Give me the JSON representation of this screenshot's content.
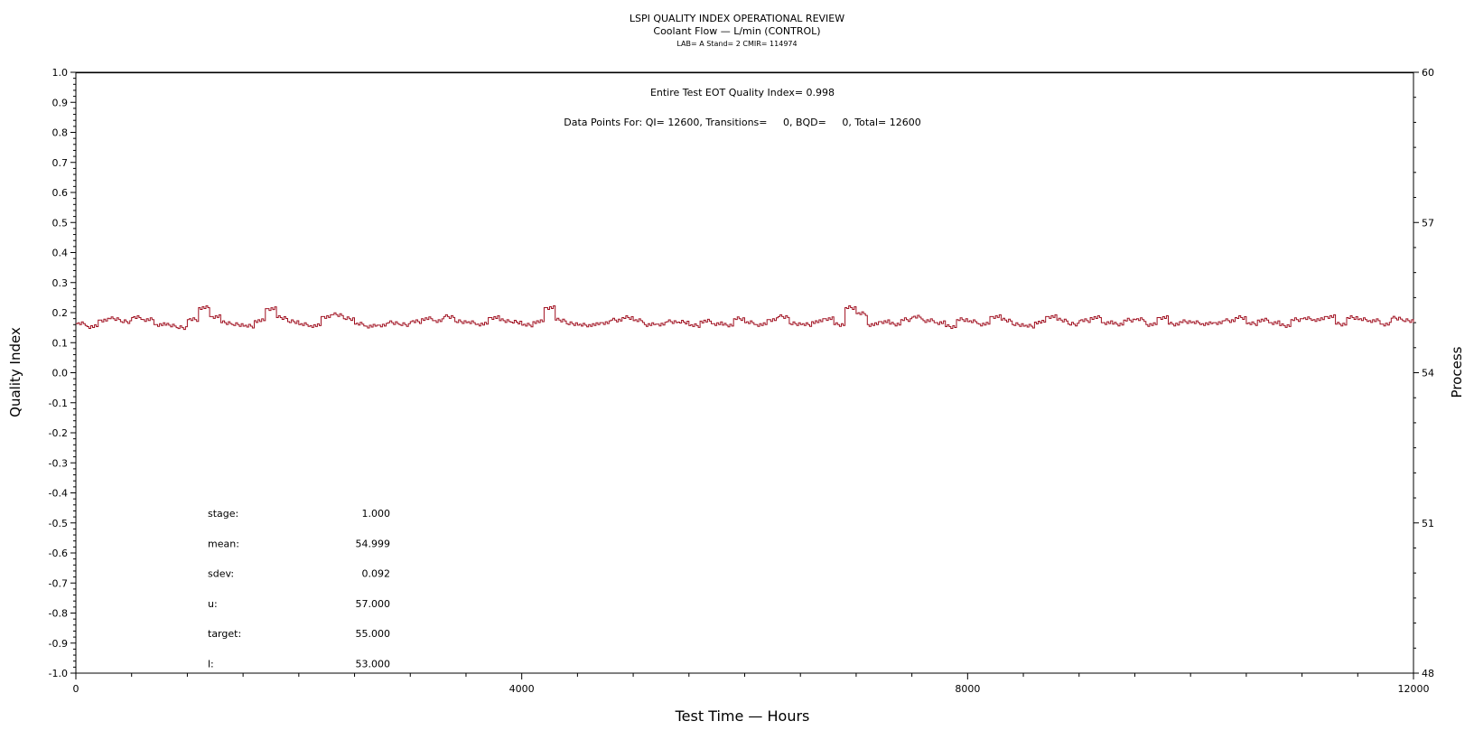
{
  "chart_data": {
    "type": "line",
    "title": "LSPI QUALITY INDEX OPERATIONAL REVIEW",
    "subtitle": "Coolant Flow — L/min (CONTROL)",
    "subtitle2": "LAB= A Stand= 2 CMIR= 114974",
    "xlabel": "Test Time — Hours",
    "ylabel": "Quality Index",
    "y2label": "Process",
    "xlim": [
      0,
      12000
    ],
    "ylim": [
      -1.0,
      1.0
    ],
    "y2lim": [
      48,
      60
    ],
    "x_ticks": [
      "0",
      "4000",
      "8000",
      "12000"
    ],
    "y_ticks": [
      "1.0",
      "0.9",
      "0.8",
      "0.7",
      "0.6",
      "0.5",
      "0.4",
      "0.3",
      "0.2",
      "0.1",
      "0.0",
      "-0.1",
      "-0.2",
      "-0.3",
      "-0.4",
      "-0.5",
      "-0.6",
      "-0.7",
      "-0.8",
      "-0.9",
      "-1.0"
    ],
    "y2_ticks": [
      "60",
      "57",
      "54",
      "51",
      "48"
    ],
    "annotation_eot": "Entire Test EOT Quality Index=   0.998",
    "annotation_points": "Data Points For: QI= 12600, Transitions=     0, BQD=     0, Total= 12600",
    "stats": [
      {
        "label": "stage:",
        "value": "1.000"
      },
      {
        "label": "mean:",
        "value": "54.999"
      },
      {
        "label": "sdev:",
        "value": "0.092"
      },
      {
        "label": "u:",
        "value": "57.000"
      },
      {
        "label": "target:",
        "value": "55.000"
      },
      {
        "label": "l:",
        "value": "53.000"
      }
    ],
    "quality_index_level": 0.998,
    "series": [
      {
        "axis": "process",
        "color": "#a01020",
        "x": [
          0,
          100,
          200,
          300,
          400,
          500,
          600,
          700,
          800,
          900,
          1000,
          1100,
          1200,
          1300,
          1400,
          1500,
          1600,
          1700,
          1800,
          1900,
          2000,
          2100,
          2200,
          2300,
          2400,
          2500,
          2600,
          2700,
          2800,
          2900,
          3000,
          3100,
          3200,
          3300,
          3400,
          3500,
          3600,
          3700,
          3800,
          3900,
          4000,
          4100,
          4200,
          4300,
          4400,
          4500,
          4600,
          4700,
          4800,
          4900,
          5000,
          5100,
          5200,
          5300,
          5400,
          5500,
          5600,
          5700,
          5800,
          5900,
          6000,
          6100,
          6200,
          6300,
          6400,
          6500,
          6600,
          6700,
          6800,
          6900,
          7000,
          7100,
          7200,
          7300,
          7400,
          7500,
          7600,
          7700,
          7800,
          7900,
          8000,
          8100,
          8200,
          8300,
          8400,
          8500,
          8600,
          8700,
          8800,
          8900,
          9000,
          9100,
          9200,
          9300,
          9400,
          9500,
          9600,
          9700,
          9800,
          9900,
          10000,
          10100,
          10200,
          10300,
          10400,
          10500,
          10600,
          10700,
          10800,
          10900,
          11000,
          11100,
          11200,
          11300,
          11400,
          11500,
          11600,
          11700,
          11800,
          11900,
          12000
        ],
        "values": [
          54.98,
          54.92,
          55.05,
          55.08,
          55.02,
          55.1,
          55.06,
          54.96,
          54.95,
          54.9,
          55.06,
          55.3,
          55.12,
          55.0,
          54.96,
          54.93,
          55.04,
          55.28,
          55.1,
          55.02,
          54.96,
          54.94,
          55.12,
          55.16,
          55.08,
          54.97,
          54.93,
          54.95,
          55.0,
          54.96,
          55.02,
          55.08,
          55.04,
          55.12,
          55.02,
          55.0,
          54.97,
          55.1,
          55.04,
          55.01,
          54.95,
          55.02,
          55.3,
          55.05,
          54.98,
          54.95,
          54.96,
          55.0,
          55.05,
          55.1,
          55.04,
          54.96,
          54.97,
          55.02,
          55.01,
          54.94,
          55.03,
          54.98,
          54.95,
          55.08,
          55.0,
          54.96,
          55.06,
          55.12,
          54.98,
          54.96,
          55.02,
          55.08,
          54.96,
          55.3,
          55.18,
          54.96,
          55.02,
          54.97,
          55.06,
          55.11,
          55.04,
          55.0,
          54.92,
          55.06,
          55.02,
          54.97,
          55.12,
          55.05,
          54.96,
          54.93,
          55.01,
          55.12,
          55.05,
          54.97,
          55.04,
          55.1,
          55.0,
          54.97,
          55.05,
          55.06,
          54.96,
          55.1,
          54.97,
          55.02,
          55.0,
          54.98,
          55.0,
          55.04,
          55.1,
          54.98,
          55.05,
          55.0,
          54.94,
          55.06,
          55.08,
          55.06,
          55.12,
          54.97,
          55.1,
          55.06,
          55.04,
          54.97,
          55.09,
          55.04,
          55.0
        ]
      }
    ]
  }
}
